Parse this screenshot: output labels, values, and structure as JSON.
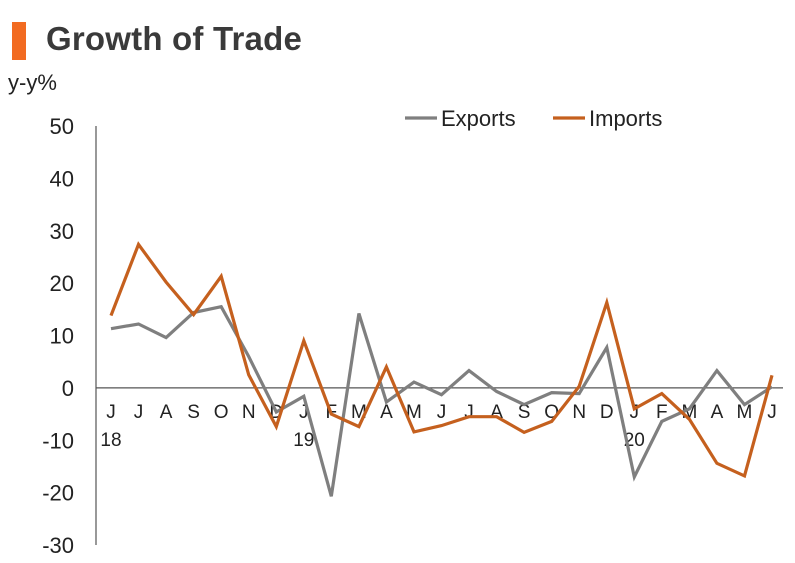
{
  "header": {
    "title": "Growth of Trade",
    "accent": "#f26b21"
  },
  "chart_data": {
    "type": "line",
    "title": "Growth of Trade",
    "ylabel": "y-y%",
    "xlabel": "",
    "ylim": [
      -30,
      50
    ],
    "yticks": [
      50,
      40,
      30,
      20,
      10,
      0,
      -10,
      -20,
      -30
    ],
    "categories": [
      "J",
      "J",
      "A",
      "S",
      "O",
      "N",
      "D",
      "J",
      "F",
      "M",
      "A",
      "M",
      "J",
      "J",
      "A",
      "S",
      "O",
      "N",
      "D",
      "J",
      "F",
      "M",
      "A",
      "M",
      "J"
    ],
    "year_labels": [
      {
        "index": 0,
        "label": "18"
      },
      {
        "index": 7,
        "label": "19"
      },
      {
        "index": 19,
        "label": "20"
      }
    ],
    "legend_position": "top-right",
    "grid": false,
    "series": [
      {
        "name": "Exports",
        "color": "#7f7f7f",
        "values": [
          11.3,
          12.2,
          9.6,
          14.4,
          15.5,
          6.0,
          -4.6,
          -1.6,
          -20.7,
          14.2,
          -2.7,
          1.1,
          -1.3,
          3.3,
          -0.7,
          -3.2,
          -0.9,
          -1.1,
          7.7,
          -17.0,
          -6.4,
          -4.0,
          3.3,
          -3.2,
          0.2
        ]
      },
      {
        "name": "Imports",
        "color": "#c5601e",
        "values": [
          13.8,
          27.4,
          20.2,
          14.0,
          21.3,
          2.5,
          -7.4,
          9.0,
          -5.0,
          -7.4,
          4.0,
          -8.4,
          -7.2,
          -5.5,
          -5.5,
          -8.5,
          -6.4,
          0.3,
          16.3,
          -4.0,
          -1.1,
          -6.0,
          -14.4,
          -16.8,
          2.4
        ]
      }
    ]
  }
}
